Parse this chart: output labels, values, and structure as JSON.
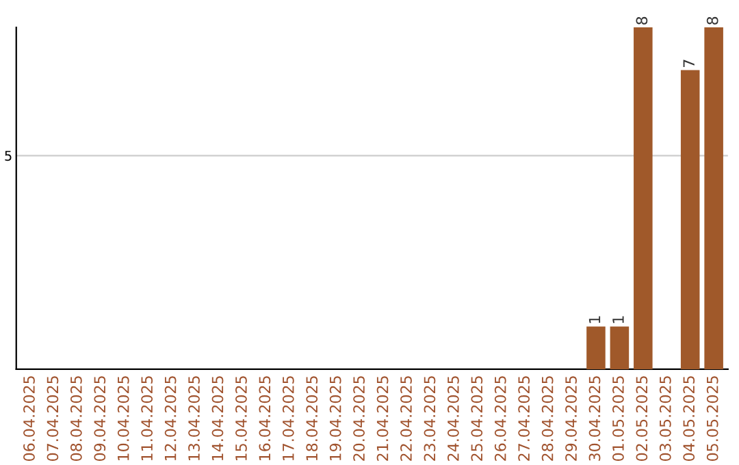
{
  "chart_data": {
    "type": "bar",
    "categories": [
      "06.04.2025",
      "07.04.2025",
      "08.04.2025",
      "09.04.2025",
      "10.04.2025",
      "11.04.2025",
      "12.04.2025",
      "13.04.2025",
      "14.04.2025",
      "15.04.2025",
      "16.04.2025",
      "17.04.2025",
      "18.04.2025",
      "19.04.2025",
      "20.04.2025",
      "21.04.2025",
      "22.04.2025",
      "23.04.2025",
      "24.04.2025",
      "25.04.2025",
      "26.04.2025",
      "27.04.2025",
      "28.04.2025",
      "29.04.2025",
      "30.04.2025",
      "01.05.2025",
      "02.05.2025",
      "03.05.2025",
      "04.05.2025",
      "05.05.2025"
    ],
    "values": [
      null,
      null,
      null,
      null,
      null,
      null,
      null,
      null,
      null,
      null,
      null,
      null,
      null,
      null,
      null,
      null,
      null,
      null,
      null,
      null,
      null,
      null,
      null,
      null,
      1,
      1,
      8,
      null,
      7,
      8
    ],
    "data_labels": true,
    "color": "#a0592a",
    "ylim": [
      0,
      8
    ],
    "yticks": [
      5
    ],
    "grid": "y"
  }
}
